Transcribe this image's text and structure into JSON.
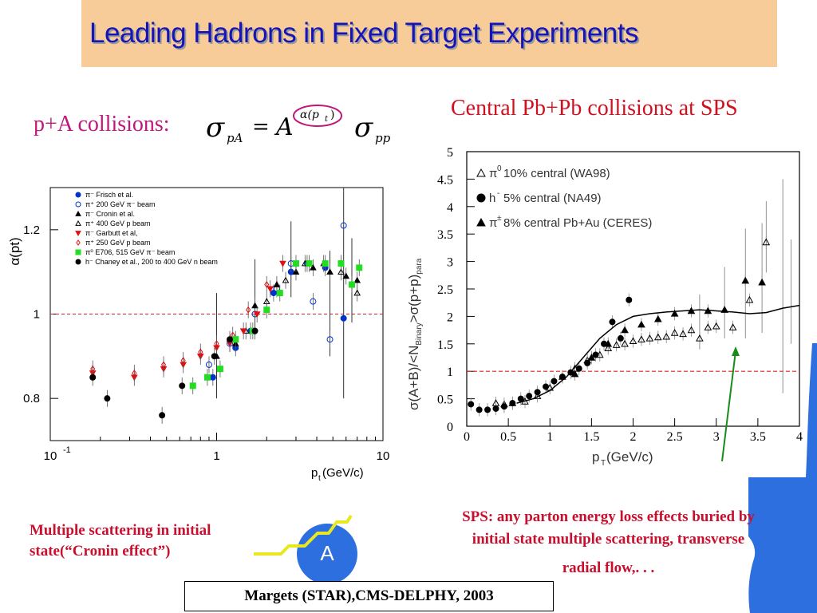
{
  "slide": {
    "title": "Leading Hadrons in Fixed Target Experiments",
    "pa_label": "p+A collisions:",
    "formula": {
      "sigma": "σ",
      "sub_pa": "pA",
      "eq": "=",
      "A": "A",
      "exp": "α(p",
      "exp_sub": "t",
      "exp_close": ")",
      "sub_pp": "pp"
    },
    "sps_label": "Central Pb+Pb collisions at SPS",
    "multiple_scattering": "Multiple scattering in initial state(“Cronin effect”)",
    "sps_text_line1": "SPS: any parton energy loss effects buried by",
    "sps_text_line2": "initial state multiple scattering, transverse",
    "sps_text_line3": "radial flow,. . .",
    "nucleus_label": "A",
    "citation": "Margets (STAR),CMS-DELPHY, 2003"
  },
  "colors": {
    "title": "#1414b8",
    "title_bg": "#f7cc98",
    "accent_red": "#c8102e",
    "magenta": "#c0187a",
    "blue": "#2a6fdb"
  },
  "chart_data": [
    {
      "type": "scatter",
      "ylabel": "α(pt)",
      "xlabel_main": "p",
      "xlabel_sub": "t",
      "xlabel_unit": " (GeV/c)",
      "xscale": "log",
      "xlim": [
        0.1,
        10
      ],
      "ylim": [
        0.7,
        1.3
      ],
      "xticks": [
        {
          "value": 0.1,
          "label": "10",
          "sup": "-1"
        },
        {
          "value": 1,
          "label": "1",
          "sup": ""
        },
        {
          "value": 10,
          "label": "10",
          "sup": ""
        }
      ],
      "yticks": [
        {
          "value": 0.8,
          "label": "0.8"
        },
        {
          "value": 1,
          "label": "1"
        },
        {
          "value": 1.2,
          "label": "1.2"
        }
      ],
      "reference_line": 1,
      "legend": [
        {
          "marker": "circle",
          "fill": true,
          "color": "#0033cc",
          "text": "π⁻ Frisch et al."
        },
        {
          "marker": "circle",
          "fill": false,
          "color": "#0033cc",
          "text": "π⁺      200 GeV π⁻ beam"
        },
        {
          "marker": "triangle",
          "fill": true,
          "color": "#000000",
          "text": "π⁻ Cronin et al."
        },
        {
          "marker": "triangle",
          "fill": false,
          "color": "#000000",
          "text": "π⁺      400 GeV p beam"
        },
        {
          "marker": "tridown",
          "fill": true,
          "color": "#e01010",
          "text": "π⁻ Garbutt et al,"
        },
        {
          "marker": "diamond",
          "fill": false,
          "color": "#e01010",
          "text": "π⁺      250 GeV p beam"
        },
        {
          "marker": "square",
          "fill": true,
          "color": "#22dd22",
          "text": "π⁰ E706, 515 GeV π⁻ beam"
        },
        {
          "marker": "circle",
          "fill": true,
          "color": "#000000",
          "text": "h⁻ Chaney et al., 200 to 400 GeV n beam"
        }
      ],
      "series": [
        {
          "marker": "circle",
          "fill": true,
          "color": "#0033cc",
          "points": [
            [
              0.95,
              0.85
            ],
            [
              1.3,
              0.92
            ],
            [
              1.6,
              0.96
            ],
            [
              2.2,
              1.05
            ],
            [
              2.8,
              1.1
            ],
            [
              3.5,
              1.12
            ],
            [
              4.5,
              1.11
            ],
            [
              5.8,
              0.99
            ]
          ]
        },
        {
          "marker": "circle",
          "fill": false,
          "color": "#0033cc",
          "points": [
            [
              0.9,
              0.88
            ],
            [
              1.2,
              0.93
            ],
            [
              1.7,
              1.0
            ],
            [
              2.3,
              1.06
            ],
            [
              2.8,
              1.12
            ],
            [
              3.8,
              1.03
            ],
            [
              4.8,
              0.94
            ],
            [
              5.8,
              1.21
            ]
          ]
        },
        {
          "marker": "triangle",
          "fill": true,
          "color": "#000000",
          "points": [
            [
              1.0,
              0.9
            ],
            [
              1.3,
              0.93
            ],
            [
              1.7,
              1.02
            ],
            [
              2.3,
              1.07
            ],
            [
              3.0,
              1.1
            ],
            [
              3.8,
              1.11
            ],
            [
              4.8,
              1.1
            ],
            [
              6.0,
              1.09
            ],
            [
              7.0,
              1.08
            ]
          ]
        },
        {
          "marker": "triangle",
          "fill": false,
          "color": "#000000",
          "points": [
            [
              1.5,
              0.96
            ],
            [
              2.0,
              1.03
            ],
            [
              2.6,
              1.08
            ],
            [
              3.4,
              1.12
            ],
            [
              4.4,
              1.12
            ],
            [
              5.6,
              1.1
            ],
            [
              7.0,
              1.05
            ]
          ]
        },
        {
          "marker": "tridown",
          "fill": true,
          "color": "#e01010",
          "points": [
            [
              0.18,
              0.86
            ],
            [
              0.32,
              0.85
            ],
            [
              0.48,
              0.87
            ],
            [
              0.63,
              0.88
            ],
            [
              0.8,
              0.9
            ],
            [
              1.0,
              0.92
            ],
            [
              1.2,
              0.93
            ],
            [
              1.45,
              0.96
            ],
            [
              1.75,
              1.0
            ],
            [
              2.1,
              1.06
            ],
            [
              2.5,
              1.12
            ]
          ]
        },
        {
          "marker": "diamond",
          "fill": false,
          "color": "#e01010",
          "points": [
            [
              0.18,
              0.87
            ],
            [
              0.32,
              0.86
            ],
            [
              0.48,
              0.88
            ],
            [
              0.63,
              0.89
            ],
            [
              0.8,
              0.91
            ],
            [
              1.0,
              0.93
            ],
            [
              1.25,
              0.95
            ],
            [
              1.55,
              1.01
            ],
            [
              2.0,
              1.07
            ]
          ]
        },
        {
          "marker": "square",
          "fill": true,
          "color": "#22dd22",
          "points": [
            [
              0.72,
              0.83
            ],
            [
              0.88,
              0.85
            ],
            [
              1.05,
              0.87
            ],
            [
              1.3,
              0.94
            ],
            [
              1.65,
              0.96
            ],
            [
              2.0,
              1.01
            ],
            [
              2.4,
              1.05
            ],
            [
              3.0,
              1.12
            ],
            [
              3.6,
              1.12
            ],
            [
              4.5,
              1.12
            ],
            [
              5.6,
              1.12
            ],
            [
              6.5,
              1.07
            ],
            [
              7.2,
              1.11
            ]
          ]
        },
        {
          "marker": "circle",
          "fill": true,
          "color": "#000000",
          "points": [
            [
              0.18,
              0.85
            ],
            [
              0.22,
              0.8
            ],
            [
              0.47,
              0.76
            ],
            [
              0.62,
              0.83
            ],
            [
              0.97,
              0.9
            ],
            [
              1.2,
              0.94
            ],
            [
              1.7,
              0.96
            ]
          ]
        }
      ]
    },
    {
      "type": "line",
      "xlabel": "p",
      "xlabel_sub": "T",
      "xlabel_unit": " (GeV/c)",
      "ylabel": "σ(A+B)/<N",
      "ylabel_sub": "Binary",
      "ylabel_rest": ">σ(p+p)",
      "ylabel_sub2": "para",
      "xlim": [
        0,
        4
      ],
      "ylim": [
        0,
        5
      ],
      "xticks": [
        "0",
        "0.5",
        "1",
        "1.5",
        "2",
        "2.5",
        "3",
        "3.5",
        "4"
      ],
      "yticks": [
        "0",
        "0.5",
        "1",
        "1.5",
        "2",
        "2.5",
        "3",
        "3.5",
        "4",
        "4.5",
        "5"
      ],
      "reference_line": 1,
      "legend": [
        {
          "marker": "triangle",
          "fill": false,
          "sym": "π",
          "sup": "0",
          "text": " 10% central (WA98)"
        },
        {
          "marker": "circle",
          "fill": true,
          "sym": "h",
          "sup": "-",
          "text": " 5% central (NA49)"
        },
        {
          "marker": "triangle",
          "fill": true,
          "sym": "π",
          "sup": "±",
          "text": " 8% central Pb+Au (CERES)"
        }
      ],
      "series": [
        {
          "name": "π0 10% central (WA98)",
          "marker": "triangle",
          "fill": false,
          "points": [
            [
              0.35,
              0.42
            ],
            [
              0.45,
              0.4
            ],
            [
              0.55,
              0.42
            ],
            [
              0.7,
              0.45
            ],
            [
              0.85,
              0.55
            ],
            [
              1.0,
              0.7
            ],
            [
              1.15,
              0.9
            ],
            [
              1.3,
              1.05
            ],
            [
              1.45,
              1.2
            ],
            [
              1.6,
              1.3
            ],
            [
              1.7,
              1.42
            ],
            [
              1.8,
              1.48
            ],
            [
              1.9,
              1.5
            ],
            [
              2.0,
              1.55
            ],
            [
              2.1,
              1.58
            ],
            [
              2.2,
              1.6
            ],
            [
              2.3,
              1.62
            ],
            [
              2.4,
              1.63
            ],
            [
              2.5,
              1.7
            ],
            [
              2.6,
              1.68
            ],
            [
              2.7,
              1.75
            ],
            [
              2.8,
              1.6
            ],
            [
              2.9,
              1.8
            ],
            [
              3.0,
              1.82
            ],
            [
              3.2,
              1.8
            ],
            [
              3.4,
              2.3
            ],
            [
              3.6,
              3.35
            ]
          ]
        },
        {
          "name": "h- 5% central (NA49)",
          "marker": "circle",
          "fill": true,
          "points": [
            [
              0.05,
              0.4
            ],
            [
              0.15,
              0.3
            ],
            [
              0.25,
              0.3
            ],
            [
              0.35,
              0.32
            ],
            [
              0.45,
              0.36
            ],
            [
              0.55,
              0.42
            ],
            [
              0.65,
              0.5
            ],
            [
              0.75,
              0.55
            ],
            [
              0.85,
              0.62
            ],
            [
              0.95,
              0.72
            ],
            [
              1.05,
              0.82
            ],
            [
              1.15,
              0.9
            ],
            [
              1.25,
              0.98
            ],
            [
              1.35,
              1.05
            ],
            [
              1.45,
              1.15
            ],
            [
              1.55,
              1.3
            ],
            [
              1.65,
              1.5
            ],
            [
              1.75,
              1.9
            ],
            [
              1.85,
              1.6
            ],
            [
              1.95,
              2.3
            ]
          ]
        },
        {
          "name": "π± 8% central Pb+Au (CERES)",
          "marker": "triangle",
          "fill": true,
          "points": [
            [
              1.3,
              0.95
            ],
            [
              1.5,
              1.25
            ],
            [
              1.7,
              1.5
            ],
            [
              1.9,
              1.75
            ],
            [
              2.1,
              1.85
            ],
            [
              2.3,
              1.95
            ],
            [
              2.5,
              2.05
            ],
            [
              2.7,
              2.1
            ],
            [
              2.9,
              2.1
            ],
            [
              3.1,
              2.12
            ],
            [
              3.35,
              2.65
            ],
            [
              3.55,
              2.62
            ]
          ]
        },
        {
          "name": "fit",
          "marker": "none",
          "line": true,
          "points": [
            [
              0.6,
              0.42
            ],
            [
              0.8,
              0.5
            ],
            [
              1.0,
              0.65
            ],
            [
              1.2,
              0.9
            ],
            [
              1.4,
              1.25
            ],
            [
              1.6,
              1.6
            ],
            [
              1.8,
              1.85
            ],
            [
              2.0,
              2.0
            ],
            [
              2.2,
              2.05
            ],
            [
              2.4,
              2.08
            ],
            [
              2.6,
              2.1
            ],
            [
              2.8,
              2.12
            ],
            [
              3.0,
              2.1
            ],
            [
              3.2,
              2.08
            ],
            [
              3.4,
              2.05
            ],
            [
              3.6,
              2.07
            ],
            [
              3.8,
              2.15
            ],
            [
              4.0,
              2.2
            ]
          ]
        }
      ]
    }
  ]
}
